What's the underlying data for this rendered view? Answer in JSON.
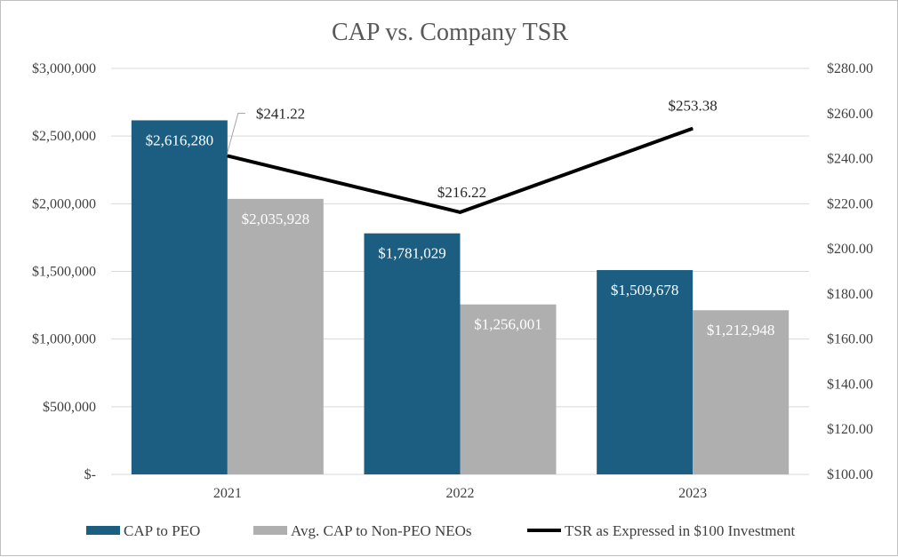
{
  "chart_data": {
    "type": "bar",
    "title": "CAP vs. Company  TSR",
    "categories": [
      "2021",
      "2022",
      "2023"
    ],
    "series": [
      {
        "name": "CAP to PEO",
        "values": [
          2616280,
          1781029,
          1509678
        ],
        "labels": [
          "$2,616,280",
          "$1,781,029",
          "$1,509,678"
        ],
        "color": "#1b5e82",
        "axis": "left"
      },
      {
        "name": "Avg. CAP to Non-PEO NEOs",
        "values": [
          2035928,
          1256001,
          1212948
        ],
        "labels": [
          "$2,035,928",
          "$1,256,001",
          "$1,212,948"
        ],
        "color": "#afafaf",
        "axis": "left"
      }
    ],
    "line_series": {
      "name": "TSR as Expressed in $100 Investment",
      "values": [
        241.22,
        216.22,
        253.38
      ],
      "labels": [
        "$241.22",
        "$216.22",
        "$253.38"
      ],
      "color": "#000000",
      "axis": "right"
    },
    "y_left": {
      "ylim": [
        0,
        3000000
      ],
      "ticks": [
        0,
        500000,
        1000000,
        1500000,
        2000000,
        2500000,
        3000000
      ],
      "tick_labels": [
        "$-",
        "$500,000",
        "$1,000,000",
        "$1,500,000",
        "$2,000,000",
        "$2,500,000",
        "$3,000,000"
      ]
    },
    "y_right": {
      "ylim": [
        100,
        280
      ],
      "ticks": [
        100,
        120,
        140,
        160,
        180,
        200,
        220,
        240,
        260,
        280
      ],
      "tick_labels": [
        "$100.00",
        "$120.00",
        "$140.00",
        "$160.00",
        "$180.00",
        "$200.00",
        "$220.00",
        "$240.00",
        "$260.00",
        "$280.00"
      ]
    },
    "grid": true,
    "legend_position": "bottom"
  }
}
